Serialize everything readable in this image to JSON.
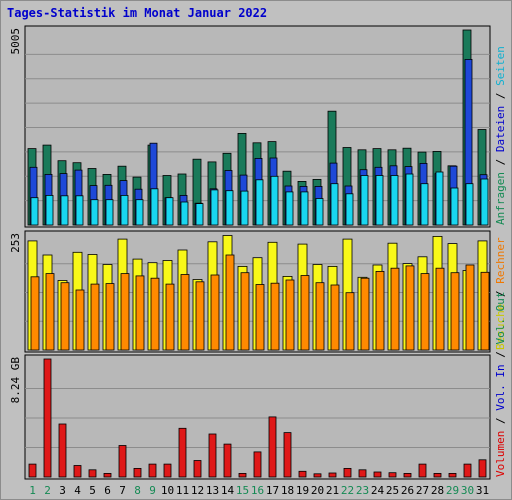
{
  "title": "Tages-Statistik im Monat Januar 2022",
  "colors": {
    "background": "#c0c0c0",
    "plot_bg": "#b8b8b8",
    "grid": "#8c8c8c",
    "anfragen": "#1a7a5a",
    "dateien": "#1e48d8",
    "seiten": "#19d6f0",
    "besuche": "#f8f818",
    "rechner": "#ff8a00",
    "volumen": "#e01818",
    "title": "#0000cc",
    "weekday_label": "#000000",
    "weekend_label": "#158a54"
  },
  "chart_data": [
    {
      "type": "bar",
      "panel": "top",
      "ymax_label": "5005",
      "ylim": [
        0,
        5005
      ],
      "categories": [
        "1",
        "2",
        "3",
        "4",
        "5",
        "6",
        "7",
        "8",
        "9",
        "10",
        "11",
        "12",
        "13",
        "14",
        "15",
        "16",
        "17",
        "18",
        "19",
        "20",
        "21",
        "22",
        "23",
        "24",
        "25",
        "26",
        "27",
        "28",
        "29",
        "30",
        "31"
      ],
      "weekend_days": [
        "1",
        "2",
        "8",
        "9",
        "15",
        "16",
        "22",
        "23",
        "29",
        "30"
      ],
      "series": [
        {
          "name": "Anfragen",
          "values": [
            1960,
            2050,
            1650,
            1600,
            1450,
            1300,
            1510,
            1230,
            2050,
            1270,
            1310,
            1690,
            1620,
            1840,
            2350,
            2110,
            2140,
            1380,
            1120,
            1170,
            2920,
            1990,
            1930,
            1960,
            1930,
            1970,
            1870,
            1890,
            1520,
            5005,
            2450
          ]
        },
        {
          "name": "Dateien",
          "values": [
            1480,
            1300,
            1320,
            1410,
            1010,
            1020,
            1140,
            920,
            2100,
            700,
            760,
            560,
            930,
            1400,
            1280,
            1710,
            1720,
            1000,
            990,
            990,
            1590,
            1000,
            1420,
            1480,
            1520,
            1500,
            1580,
            1320,
            1510,
            4250,
            1290
          ]
        },
        {
          "name": "Seiten",
          "values": [
            700,
            760,
            750,
            750,
            650,
            650,
            760,
            650,
            930,
            700,
            590,
            550,
            900,
            880,
            870,
            1160,
            1250,
            850,
            850,
            680,
            1060,
            800,
            1270,
            1270,
            1270,
            1310,
            1060,
            1360,
            950,
            1060,
            1180
          ]
        }
      ]
    },
    {
      "type": "bar",
      "panel": "middle",
      "ymax_label": "253",
      "ylim": [
        0,
        253
      ],
      "categories": [
        "1",
        "2",
        "3",
        "4",
        "5",
        "6",
        "7",
        "8",
        "9",
        "10",
        "11",
        "12",
        "13",
        "14",
        "15",
        "16",
        "17",
        "18",
        "19",
        "20",
        "21",
        "22",
        "23",
        "24",
        "25",
        "26",
        "27",
        "28",
        "29",
        "30",
        "31"
      ],
      "series": [
        {
          "name": "Besuche",
          "values": [
            240,
            209,
            153,
            215,
            210,
            188,
            244,
            200,
            192,
            197,
            220,
            155,
            238,
            252,
            184,
            203,
            237,
            162,
            233,
            188,
            184,
            244,
            160,
            187,
            235,
            190,
            205,
            250,
            234,
            175,
            240
          ]
        },
        {
          "name": "Rechner",
          "values": [
            161,
            168,
            148,
            132,
            145,
            146,
            168,
            163,
            158,
            145,
            166,
            150,
            165,
            209,
            170,
            144,
            147,
            154,
            164,
            148,
            143,
            126,
            158,
            173,
            180,
            185,
            168,
            180,
            170,
            187,
            171
          ]
        }
      ]
    },
    {
      "type": "bar",
      "panel": "bottom",
      "ymax_label": "8.24 GB",
      "unit": "GB",
      "ylim": [
        0,
        8.24
      ],
      "categories": [
        "1",
        "2",
        "3",
        "4",
        "5",
        "6",
        "7",
        "8",
        "9",
        "10",
        "11",
        "12",
        "13",
        "14",
        "15",
        "16",
        "17",
        "18",
        "19",
        "20",
        "21",
        "22",
        "23",
        "24",
        "25",
        "26",
        "27",
        "28",
        "29",
        "30",
        "31"
      ],
      "series": [
        {
          "name": "Volumen",
          "values": [
            0.9,
            8.24,
            3.7,
            0.8,
            0.5,
            0.25,
            2.2,
            0.6,
            0.9,
            0.9,
            3.4,
            1.15,
            3.0,
            2.3,
            0.25,
            1.75,
            4.2,
            3.1,
            0.4,
            0.22,
            0.28,
            0.6,
            0.5,
            0.35,
            0.3,
            0.25,
            0.9,
            0.25,
            0.25,
            0.9,
            1.2
          ]
        }
      ]
    }
  ],
  "right_labels": {
    "top": [
      {
        "text": "Anfragen",
        "color": "#158a54"
      },
      {
        "text": " / ",
        "color": "#000000"
      },
      {
        "text": "Dateien",
        "color": "#0000cc"
      },
      {
        "text": " / ",
        "color": "#000000"
      },
      {
        "text": "Seiten",
        "color": "#10b0d0"
      }
    ],
    "middle": [
      {
        "text": "Besuche",
        "color": "#c8c800"
      },
      {
        "text": " / ",
        "color": "#000000"
      },
      {
        "text": "Rechner",
        "color": "#f07800"
      }
    ],
    "bottom": [
      {
        "text": "Volumen",
        "color": "#dd0000"
      },
      {
        "text": " / ",
        "color": "#000000"
      },
      {
        "text": "Vol. In",
        "color": "#0000cc"
      },
      {
        "text": " / ",
        "color": "#000000"
      },
      {
        "text": "Vol. Out",
        "color": "#158a54"
      }
    ]
  }
}
